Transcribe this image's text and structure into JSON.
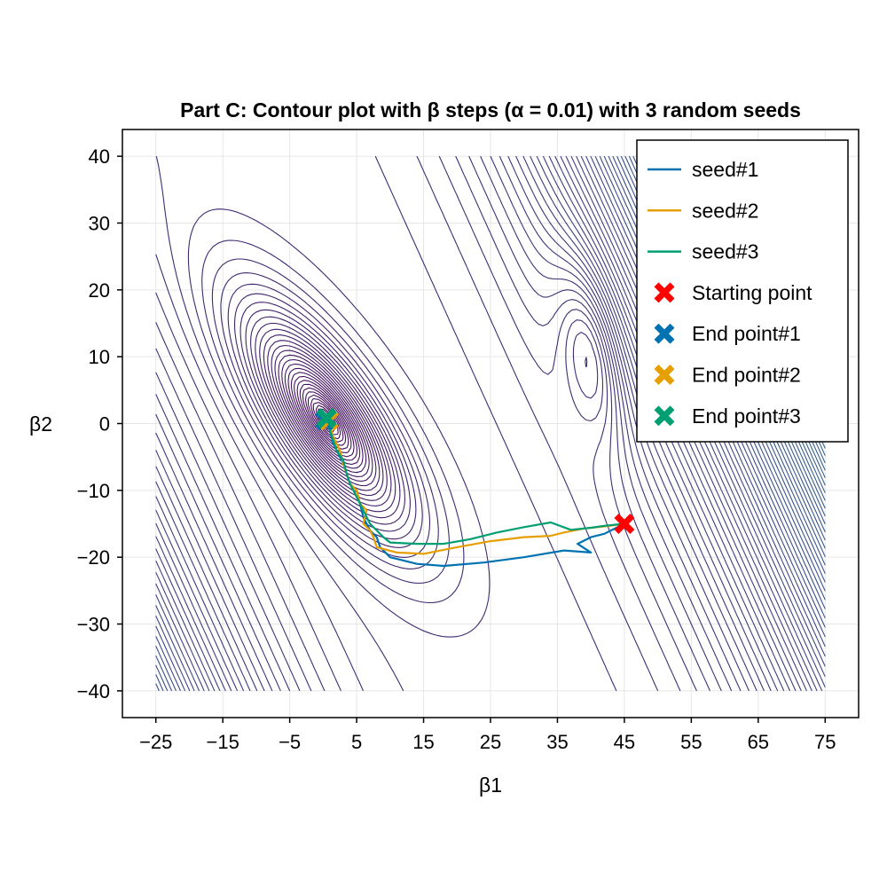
{
  "chart_data": {
    "type": "contour",
    "title": "Part C: Contour plot with β steps (α = 0.01) with 3 random seeds",
    "xlabel": "β1",
    "ylabel": "β2",
    "xlim": [
      -30,
      80
    ],
    "ylim": [
      -44,
      44
    ],
    "contour_domain": {
      "x": [
        -25,
        75
      ],
      "y": [
        -40,
        40
      ]
    },
    "x_ticks": [
      -25,
      -15,
      -5,
      5,
      15,
      25,
      35,
      45,
      55,
      65,
      75
    ],
    "x_tick_labels": [
      "−25",
      "−15",
      "−5",
      "5",
      "15",
      "25",
      "35",
      "45",
      "55",
      "65",
      "75"
    ],
    "y_ticks": [
      -40,
      -30,
      -20,
      -10,
      0,
      10,
      20,
      30,
      40
    ],
    "y_tick_labels": [
      "−40",
      "−30",
      "−20",
      "−10",
      "0",
      "10",
      "20",
      "30",
      "40"
    ],
    "grid": true,
    "legend_position": "top-right",
    "colors": {
      "seed1": "#0072B2",
      "seed2": "#E69F00",
      "seed3": "#009E73",
      "start": "#FF0000",
      "contour_low": "#440154",
      "contour_mid": "#3b528b",
      "contour_high": "#21918c"
    },
    "series": [
      {
        "name": "seed#1",
        "color": "#0072B2",
        "x": [
          45,
          42,
          40,
          38,
          40,
          36,
          30,
          24,
          18,
          14,
          12,
          10,
          8.5,
          8,
          7,
          6,
          5.5,
          5,
          4,
          3.5,
          3,
          2,
          1.5,
          1,
          0.3
        ],
        "y": [
          -15,
          -16.5,
          -17,
          -18,
          -19.3,
          -19,
          -20,
          -20.8,
          -21.3,
          -21,
          -20.5,
          -20,
          -18.5,
          -17,
          -16,
          -14,
          -12,
          -10,
          -9,
          -7.5,
          -6,
          -4,
          -3,
          -1,
          0.5
        ]
      },
      {
        "name": "seed#2",
        "color": "#E69F00",
        "x": [
          45,
          42,
          39,
          36,
          34,
          30,
          25,
          20,
          15,
          11,
          8,
          7.5,
          7,
          6,
          6.5,
          5.5,
          5,
          4,
          3.5,
          3,
          2.5,
          1.5,
          0.8
        ],
        "y": [
          -15,
          -15.4,
          -15.7,
          -16.3,
          -16.8,
          -17,
          -17.6,
          -18.5,
          -19.5,
          -19.3,
          -18.5,
          -17,
          -16,
          -15,
          -13,
          -12,
          -10,
          -9,
          -7.5,
          -6,
          -4,
          -2,
          0.5
        ]
      },
      {
        "name": "seed#3",
        "color": "#009E73",
        "x": [
          45,
          42,
          40,
          37,
          34,
          30,
          26,
          22,
          18,
          14,
          10,
          9,
          8,
          7,
          6,
          5,
          4,
          3.5,
          3,
          2,
          1.5,
          1,
          0.5
        ],
        "y": [
          -15,
          -15.3,
          -15.6,
          -15.9,
          -14.8,
          -15.5,
          -16.3,
          -17.3,
          -18,
          -18,
          -17.8,
          -17,
          -16,
          -15,
          -13,
          -11,
          -9,
          -7.5,
          -5.5,
          -4,
          -2.5,
          -1,
          0.8
        ]
      }
    ],
    "points": [
      {
        "name": "Starting point",
        "color": "#FF0000",
        "x": 45,
        "y": -15
      },
      {
        "name": "End point#1",
        "color": "#0072B2",
        "x": 0.3,
        "y": 0.5
      },
      {
        "name": "End point#2",
        "color": "#E69F00",
        "x": 0.8,
        "y": 0.5
      },
      {
        "name": "End point#3",
        "color": "#009E73",
        "x": 0.5,
        "y": 0.8
      }
    ],
    "legend": [
      {
        "label": "seed#1",
        "kind": "line",
        "color": "#0072B2"
      },
      {
        "label": "seed#2",
        "kind": "line",
        "color": "#E69F00"
      },
      {
        "label": "seed#3",
        "kind": "line",
        "color": "#009E73"
      },
      {
        "label": "Starting point",
        "kind": "marker",
        "color": "#FF0000"
      },
      {
        "label": "End point#1",
        "kind": "marker",
        "color": "#0072B2"
      },
      {
        "label": "End point#2",
        "kind": "marker",
        "color": "#E69F00"
      },
      {
        "label": "End point#3",
        "kind": "marker",
        "color": "#009E73"
      }
    ]
  }
}
